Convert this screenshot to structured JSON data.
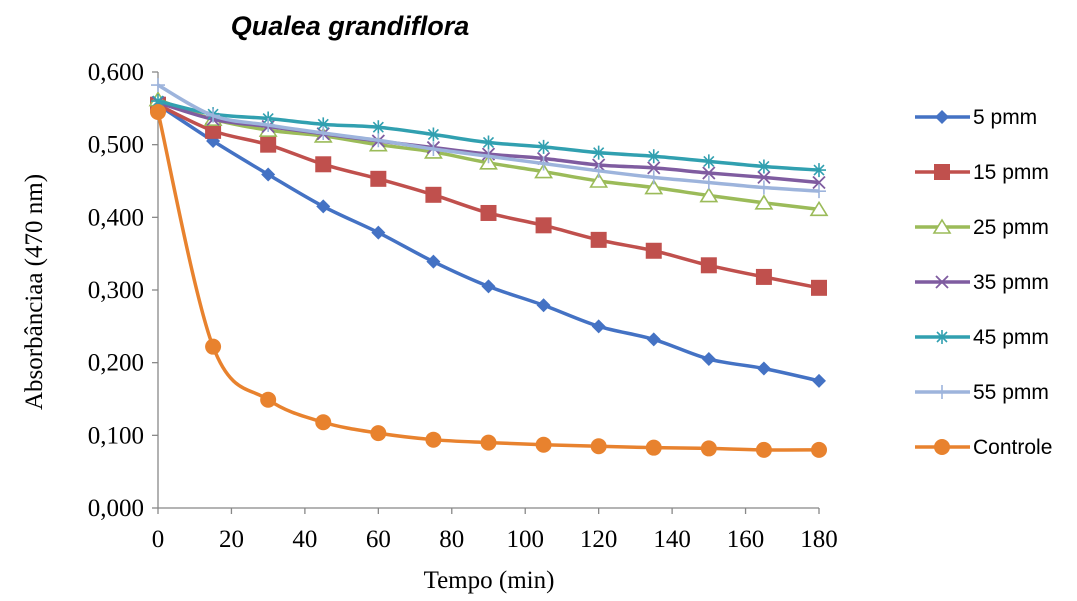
{
  "chart_data": {
    "type": "line",
    "title": "Qualea grandiflora",
    "xlabel": "Tempo (min)",
    "ylabel": "Absorbânciaa (470 nm)",
    "x": [
      0,
      15,
      30,
      45,
      60,
      75,
      90,
      105,
      120,
      135,
      150,
      165,
      180
    ],
    "xlim": [
      0,
      180
    ],
    "ylim": [
      0,
      0.6
    ],
    "x_ticks": [
      {
        "value": 0,
        "label": "0"
      },
      {
        "value": 20,
        "label": "20"
      },
      {
        "value": 40,
        "label": "40"
      },
      {
        "value": 60,
        "label": "60"
      },
      {
        "value": 80,
        "label": "80"
      },
      {
        "value": 100,
        "label": "100"
      },
      {
        "value": 120,
        "label": "120"
      },
      {
        "value": 140,
        "label": "140"
      },
      {
        "value": 160,
        "label": "160"
      },
      {
        "value": 180,
        "label": "180"
      }
    ],
    "y_ticks": [
      {
        "value": 0,
        "label": "0,000"
      },
      {
        "value": 0.1,
        "label": "0,100"
      },
      {
        "value": 0.2,
        "label": "0,200"
      },
      {
        "value": 0.3,
        "label": "0,300"
      },
      {
        "value": 0.4,
        "label": "0,400"
      },
      {
        "value": 0.5,
        "label": "0,500"
      },
      {
        "value": 0.6,
        "label": "0,600"
      }
    ],
    "grid": false,
    "legend_position": "right",
    "series": [
      {
        "name": "5 pmm",
        "color": "#4472C4",
        "marker": "diamond",
        "values": [
          0.555,
          0.505,
          0.459,
          0.415,
          0.379,
          0.339,
          0.305,
          0.279,
          0.25,
          0.232,
          0.205,
          0.192,
          0.175
        ]
      },
      {
        "name": "15 pmm",
        "color": "#C0504D",
        "marker": "square",
        "values": [
          0.555,
          0.519,
          0.5,
          0.473,
          0.453,
          0.431,
          0.406,
          0.389,
          0.369,
          0.354,
          0.334,
          0.318,
          0.303
        ]
      },
      {
        "name": "25 pmm",
        "color": "#9BBB59",
        "marker": "triangle",
        "values": [
          0.562,
          0.535,
          0.52,
          0.512,
          0.5,
          0.49,
          0.475,
          0.463,
          0.45,
          0.441,
          0.43,
          0.42,
          0.411
        ]
      },
      {
        "name": "35 pmm",
        "color": "#7F5CA0",
        "marker": "x",
        "values": [
          0.558,
          0.535,
          0.525,
          0.515,
          0.505,
          0.496,
          0.487,
          0.481,
          0.472,
          0.468,
          0.461,
          0.455,
          0.448
        ]
      },
      {
        "name": "45 pmm",
        "color": "#31A0B0",
        "marker": "star",
        "values": [
          0.56,
          0.542,
          0.536,
          0.528,
          0.524,
          0.514,
          0.503,
          0.497,
          0.489,
          0.484,
          0.477,
          0.47,
          0.465
        ]
      },
      {
        "name": "55 pmm",
        "color": "#9DB4DC",
        "marker": "plus",
        "values": [
          0.582,
          0.54,
          0.527,
          0.516,
          0.506,
          0.494,
          0.484,
          0.474,
          0.464,
          0.455,
          0.448,
          0.441,
          0.436
        ]
      },
      {
        "name": "Controle",
        "color": "#E8822E",
        "marker": "circle",
        "values": [
          0.545,
          0.222,
          0.149,
          0.118,
          0.103,
          0.094,
          0.09,
          0.087,
          0.085,
          0.083,
          0.082,
          0.08,
          0.08
        ]
      }
    ]
  }
}
